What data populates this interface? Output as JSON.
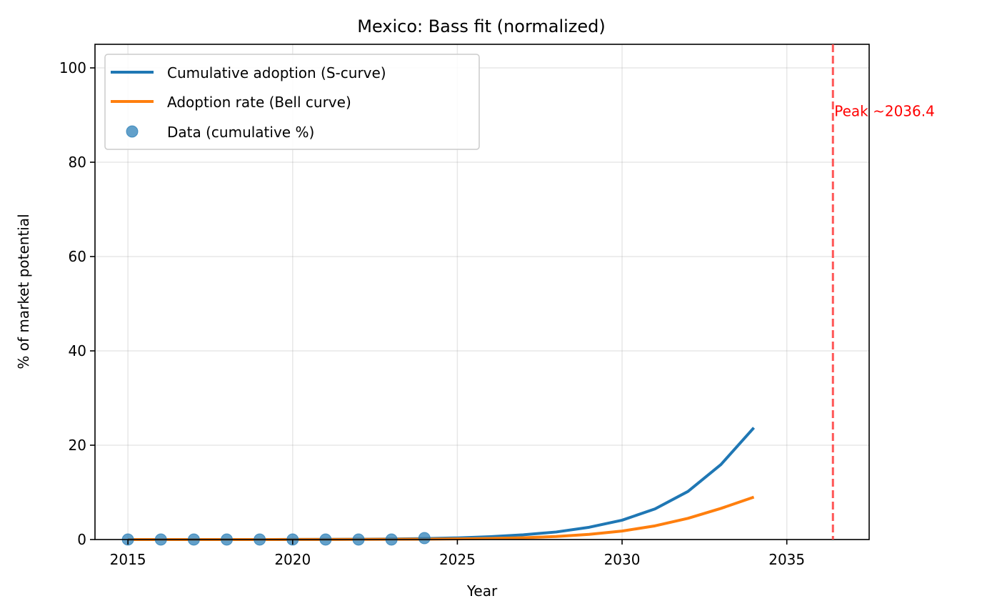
{
  "chart_data": {
    "type": "line",
    "title": "Mexico: Bass fit (normalized)",
    "xlabel": "Year",
    "ylabel": "% of market potential",
    "xlim": [
      2014.0,
      2037.5
    ],
    "ylim": [
      0,
      105
    ],
    "xticks": [
      "2015",
      "2020",
      "2025",
      "2030",
      "2035"
    ],
    "yticks": [
      "0",
      "20",
      "40",
      "60",
      "80",
      "100"
    ],
    "grid": true,
    "legend_position": "top-left",
    "series": [
      {
        "name": "Cumulative adoption (S-curve)",
        "kind": "line",
        "color": "#1f77b4",
        "x": [
          2015,
          2016,
          2017,
          2018,
          2019,
          2020,
          2021,
          2022,
          2023,
          2024,
          2025,
          2026,
          2027,
          2028,
          2029,
          2030,
          2031,
          2032,
          2033,
          2034
        ],
        "y": [
          0.0,
          0.0,
          0.0,
          0.0,
          0.0,
          0.02,
          0.04,
          0.07,
          0.12,
          0.2,
          0.35,
          0.6,
          1.0,
          1.6,
          2.6,
          4.1,
          6.5,
          10.2,
          15.9,
          23.7
        ]
      },
      {
        "name": "Adoption rate (Bell curve)",
        "kind": "line",
        "color": "#ff7f0e",
        "x": [
          2015,
          2016,
          2017,
          2018,
          2019,
          2020,
          2021,
          2022,
          2023,
          2024,
          2025,
          2026,
          2027,
          2028,
          2029,
          2030,
          2031,
          2032,
          2033,
          2034
        ],
        "y": [
          0.0,
          0.0,
          0.0,
          0.0,
          0.0,
          0.01,
          0.02,
          0.03,
          0.05,
          0.08,
          0.13,
          0.22,
          0.38,
          0.65,
          1.1,
          1.8,
          2.9,
          4.5,
          6.6,
          9.0
        ]
      },
      {
        "name": "Data (cumulative %)",
        "kind": "scatter",
        "color": "#1f77b4",
        "x": [
          2015,
          2016,
          2017,
          2018,
          2019,
          2020,
          2021,
          2022,
          2023,
          2024
        ],
        "y": [
          0.0,
          0.0,
          0.0,
          0.0,
          0.0,
          0.0,
          0.0,
          0.0,
          0.0,
          0.3
        ]
      }
    ],
    "annotations": [
      {
        "type": "vline",
        "x": 2036.4,
        "color": "#ff4d4d",
        "style": "dashed",
        "label": "Peak ~2036.4",
        "label_y": 91,
        "label_color": "#ff0000"
      }
    ]
  }
}
